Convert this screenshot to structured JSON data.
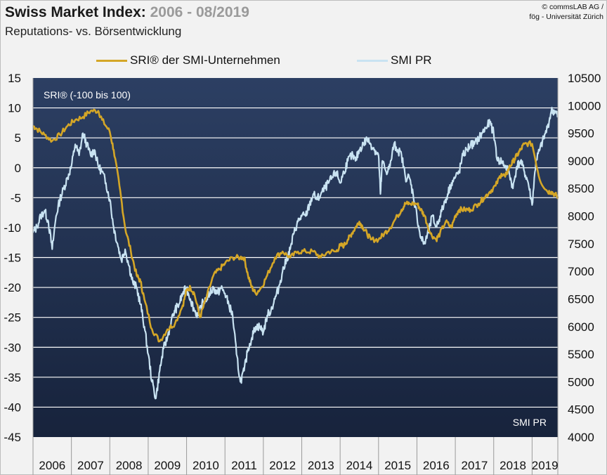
{
  "header": {
    "title_main": "Swiss Market Index:",
    "title_range": "2006 - 08/2019",
    "subtitle": "Reputations- vs. Börsentwicklung",
    "copyright_line1": "© commsLAB AG /",
    "copyright_line2": "fög - Universität Zürich"
  },
  "colors": {
    "sri": "#d4a627",
    "smi": "#c9e3f2",
    "plot_top": "#2c3f63",
    "plot_bottom": "#17233c",
    "grid": "#ffffff"
  },
  "chart_data": {
    "type": "line",
    "title": "Swiss Market Index: 2006 - 08/2019",
    "subtitle": "Reputations- vs. Börsentwicklung",
    "x_tick_labels": [
      "2006",
      "2007",
      "2008",
      "2009",
      "2010",
      "2011",
      "2012",
      "2013",
      "2014",
      "2015",
      "2016",
      "2017",
      "2018",
      "2019"
    ],
    "x_range": [
      2006.0,
      2019.67
    ],
    "y_left": {
      "label": "SRI® (-100 bis 100)",
      "range": [
        -45,
        15
      ],
      "ticks": [
        15,
        10,
        5,
        0,
        -5,
        -10,
        -15,
        -20,
        -25,
        -30,
        -35,
        -40,
        -45
      ]
    },
    "y_right": {
      "label": "SMI PR",
      "range": [
        4000,
        10500
      ],
      "ticks": [
        10500,
        10000,
        9500,
        9000,
        8500,
        8000,
        7500,
        7000,
        6500,
        6000,
        5500,
        5000,
        4500,
        4000
      ]
    },
    "legend": [
      "SRI® der SMI-Unternehmen",
      "SMI PR"
    ],
    "series": [
      {
        "name": "SRI® der SMI-Unternehmen",
        "axis": "left",
        "x": [
          2006.0,
          2006.1,
          2006.3,
          2006.5,
          2006.7,
          2006.9,
          2007.1,
          2007.3,
          2007.5,
          2007.7,
          2007.8,
          2008.0,
          2008.1,
          2008.25,
          2008.4,
          2008.55,
          2008.7,
          2008.8,
          2008.9,
          2009.1,
          2009.3,
          2009.5,
          2009.7,
          2009.9,
          2010.0,
          2010.1,
          2010.2,
          2010.35,
          2010.5,
          2010.7,
          2010.85,
          2011.0,
          2011.2,
          2011.4,
          2011.5,
          2011.6,
          2011.7,
          2011.8,
          2011.95,
          2012.1,
          2012.3,
          2012.5,
          2012.7,
          2012.9,
          2013.1,
          2013.3,
          2013.5,
          2013.7,
          2013.9,
          2014.0,
          2014.1,
          2014.2,
          2014.3,
          2014.4,
          2014.5,
          2014.6,
          2014.7,
          2014.8,
          2015.0,
          2015.15,
          2015.3,
          2015.5,
          2015.6,
          2015.7,
          2015.8,
          2016.0,
          2016.1,
          2016.2,
          2016.35,
          2016.5,
          2016.6,
          2016.75,
          2016.9,
          2017.0,
          2017.1,
          2017.25,
          2017.4,
          2017.6,
          2017.75,
          2017.9,
          2018.05,
          2018.2,
          2018.3,
          2018.4,
          2018.5,
          2018.6,
          2018.7,
          2018.8,
          2019.0,
          2019.2,
          2019.4,
          2019.5,
          2019.6,
          2019.67
        ],
        "values": [
          7,
          6.5,
          5.5,
          4.5,
          5.5,
          7,
          8,
          8.5,
          9.5,
          9.5,
          8,
          6,
          3,
          -3,
          -10,
          -14,
          -18,
          -19,
          -22,
          -27,
          -29,
          -27,
          -26,
          -23,
          -20.5,
          -20,
          -21,
          -25,
          -22,
          -18,
          -17,
          -16,
          -15,
          -15,
          -15,
          -18,
          -20,
          -21,
          -20,
          -18,
          -15,
          -14,
          -15,
          -14,
          -14,
          -14,
          -15,
          -14,
          -14,
          -13,
          -13,
          -12,
          -11,
          -10,
          -9,
          -10,
          -11,
          -12,
          -12,
          -11,
          -10,
          -8,
          -7,
          -6,
          -6,
          -6,
          -7,
          -8,
          -11,
          -12,
          -11,
          -9,
          -10,
          -8,
          -7,
          -7,
          -7,
          -6,
          -5,
          -4,
          -3,
          -1,
          -1.5,
          0,
          1,
          2,
          3,
          4,
          4,
          -2,
          -4,
          -4,
          -4.5,
          -4.8
        ]
      },
      {
        "name": "SMI PR",
        "axis": "right",
        "x": [
          2006.0,
          2006.1,
          2006.2,
          2006.3,
          2006.4,
          2006.5,
          2006.6,
          2006.7,
          2006.8,
          2006.9,
          2007.0,
          2007.1,
          2007.2,
          2007.3,
          2007.4,
          2007.5,
          2007.6,
          2007.7,
          2007.8,
          2007.9,
          2008.0,
          2008.1,
          2008.2,
          2008.3,
          2008.4,
          2008.5,
          2008.6,
          2008.7,
          2008.8,
          2008.9,
          2009.0,
          2009.1,
          2009.2,
          2009.3,
          2009.4,
          2009.5,
          2009.6,
          2009.7,
          2009.8,
          2009.9,
          2010.0,
          2010.1,
          2010.2,
          2010.3,
          2010.4,
          2010.5,
          2010.6,
          2010.7,
          2010.8,
          2010.9,
          2011.0,
          2011.1,
          2011.2,
          2011.3,
          2011.4,
          2011.5,
          2011.6,
          2011.7,
          2011.8,
          2011.9,
          2012.0,
          2012.1,
          2012.2,
          2012.3,
          2012.4,
          2012.5,
          2012.6,
          2012.7,
          2012.8,
          2012.9,
          2013.0,
          2013.1,
          2013.2,
          2013.3,
          2013.4,
          2013.5,
          2013.6,
          2013.7,
          2013.8,
          2013.9,
          2014.0,
          2014.1,
          2014.2,
          2014.3,
          2014.4,
          2014.5,
          2014.6,
          2014.7,
          2014.8,
          2014.9,
          2015.0,
          2015.05,
          2015.1,
          2015.2,
          2015.3,
          2015.4,
          2015.5,
          2015.6,
          2015.7,
          2015.8,
          2015.9,
          2016.0,
          2016.1,
          2016.2,
          2016.3,
          2016.4,
          2016.5,
          2016.6,
          2016.7,
          2016.8,
          2016.9,
          2017.0,
          2017.1,
          2017.2,
          2017.3,
          2017.4,
          2017.5,
          2017.6,
          2017.7,
          2017.8,
          2017.9,
          2018.0,
          2018.1,
          2018.2,
          2018.3,
          2018.4,
          2018.5,
          2018.6,
          2018.7,
          2018.8,
          2018.9,
          2019.0,
          2019.1,
          2019.2,
          2019.3,
          2019.4,
          2019.5,
          2019.6,
          2019.67
        ],
        "values": [
          7700,
          7800,
          8000,
          8100,
          7900,
          7400,
          8000,
          8300,
          8500,
          8700,
          8900,
          9300,
          9100,
          9500,
          9300,
          9100,
          9200,
          8900,
          8800,
          8600,
          8300,
          7800,
          7500,
          7200,
          7400,
          7100,
          6800,
          6700,
          6400,
          6000,
          5500,
          5000,
          4700,
          5200,
          5600,
          5800,
          6100,
          6300,
          6400,
          6600,
          6700,
          6500,
          6300,
          6200,
          6400,
          6500,
          6600,
          6700,
          6600,
          6700,
          6600,
          6400,
          6200,
          5500,
          5000,
          5200,
          5600,
          5800,
          6000,
          6000,
          5900,
          6200,
          6300,
          6500,
          6700,
          7000,
          7200,
          7400,
          7700,
          7900,
          8000,
          8000,
          8200,
          8400,
          8300,
          8400,
          8500,
          8600,
          8700,
          8800,
          8600,
          8800,
          9000,
          9100,
          9000,
          9200,
          9300,
          9400,
          9300,
          9200,
          9100,
          8400,
          9000,
          8800,
          8900,
          9300,
          9200,
          9100,
          8700,
          8700,
          8400,
          8000,
          7600,
          7500,
          7700,
          8000,
          7800,
          8000,
          8200,
          8400,
          8600,
          8700,
          8800,
          9100,
          9200,
          9300,
          9300,
          9400,
          9500,
          9600,
          9700,
          9500,
          9000,
          9000,
          8900,
          8800,
          8500,
          8900,
          9000,
          8800,
          8600,
          8200,
          9000,
          9200,
          9400,
          9600,
          9900,
          9900,
          9800
        ]
      }
    ],
    "annotations": [
      "SRI® (-100 bis 100)",
      "SMI PR"
    ]
  }
}
